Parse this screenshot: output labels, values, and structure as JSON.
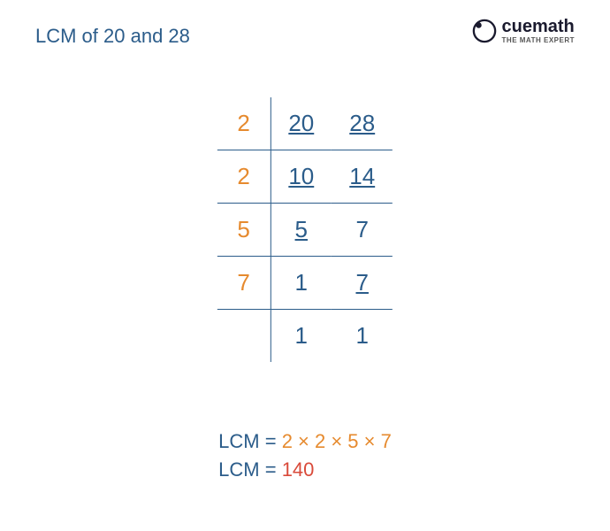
{
  "title": "LCM of 20 and 28",
  "colors": {
    "title": "#2b5c8a",
    "divisor": "#e68a2e",
    "dividend": "#2b5c8a",
    "border": "#2b5c8a",
    "lcm_label": "#2b5c8a",
    "lcm_value": "#e68a2e",
    "answer": "#d94a3a"
  },
  "logo": {
    "name": "cuemath",
    "tagline": "THE MATH EXPERT"
  },
  "table": {
    "rows": [
      {
        "divisor": "2",
        "a": "20",
        "b": "28",
        "a_ul": true,
        "b_ul": true
      },
      {
        "divisor": "2",
        "a": "10",
        "b": "14",
        "a_ul": true,
        "b_ul": true
      },
      {
        "divisor": "5",
        "a": "5",
        "b": "7",
        "a_ul": true,
        "b_ul": false
      },
      {
        "divisor": "7",
        "a": "1",
        "b": "7",
        "a_ul": false,
        "b_ul": true
      },
      {
        "divisor": "",
        "a": "1",
        "b": "1",
        "a_ul": false,
        "b_ul": false
      }
    ]
  },
  "result": {
    "label": "LCM",
    "eq": "=",
    "factors": "2 × 2 × 5 × 7",
    "answer": "140"
  }
}
